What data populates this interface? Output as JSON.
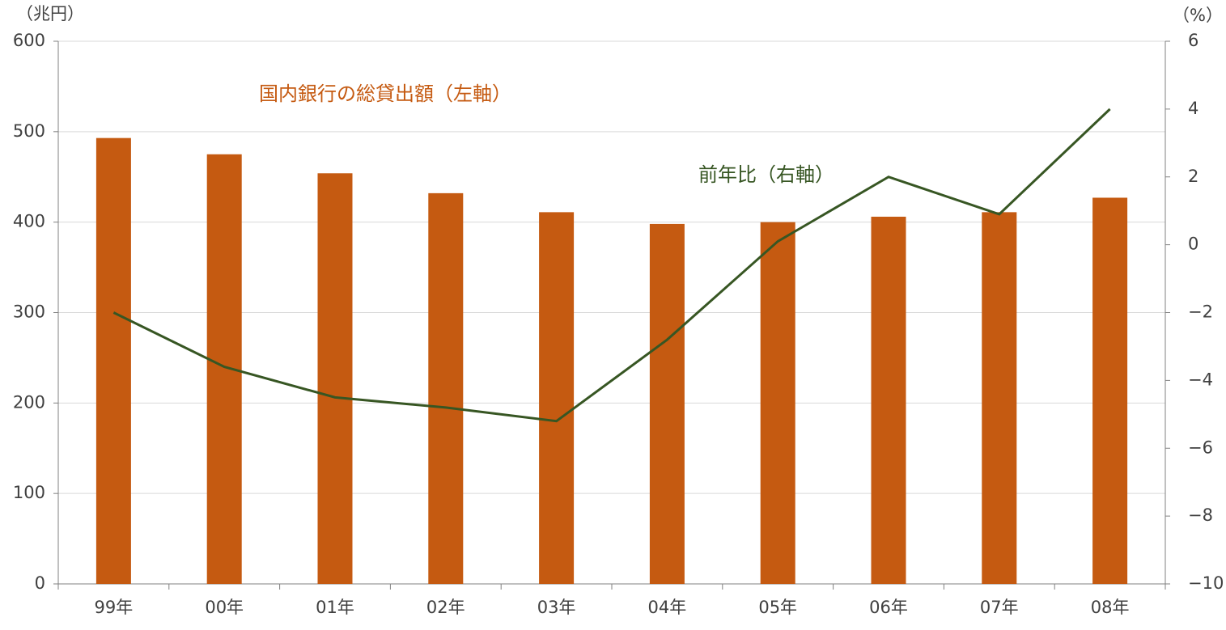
{
  "chart_data": {
    "type": "bar_line",
    "y_unit": "（兆円）",
    "y2_unit": "（%）",
    "categories": [
      "99年",
      "00年",
      "01年",
      "02年",
      "03年",
      "04年",
      "05年",
      "06年",
      "07年",
      "08年"
    ],
    "series": [
      {
        "name": "国内銀行の総貸出額（左軸）",
        "type": "bar",
        "color": "#c55a11",
        "values": [
          493,
          475,
          454,
          432,
          411,
          398,
          400,
          406,
          411,
          427
        ]
      },
      {
        "name": "前年比（右軸）",
        "type": "line",
        "axis": "y2",
        "color": "#375623",
        "values": [
          -2.0,
          -3.6,
          -4.5,
          -4.8,
          -5.2,
          -2.8,
          0.1,
          2.0,
          0.9,
          4.0
        ]
      }
    ],
    "ylim": [
      0,
      600
    ],
    "yticks": [
      0,
      100,
      200,
      300,
      400,
      500,
      600
    ],
    "y2lim": [
      -10,
      6
    ],
    "y2ticks": [
      {
        "value": -10,
        "label": "−10"
      },
      {
        "value": -8,
        "label": "−8"
      },
      {
        "value": -6,
        "label": "−6"
      },
      {
        "value": -4,
        "label": "−4"
      },
      {
        "value": -2,
        "label": "−2"
      },
      0,
      2,
      4,
      6
    ],
    "grid": true
  }
}
